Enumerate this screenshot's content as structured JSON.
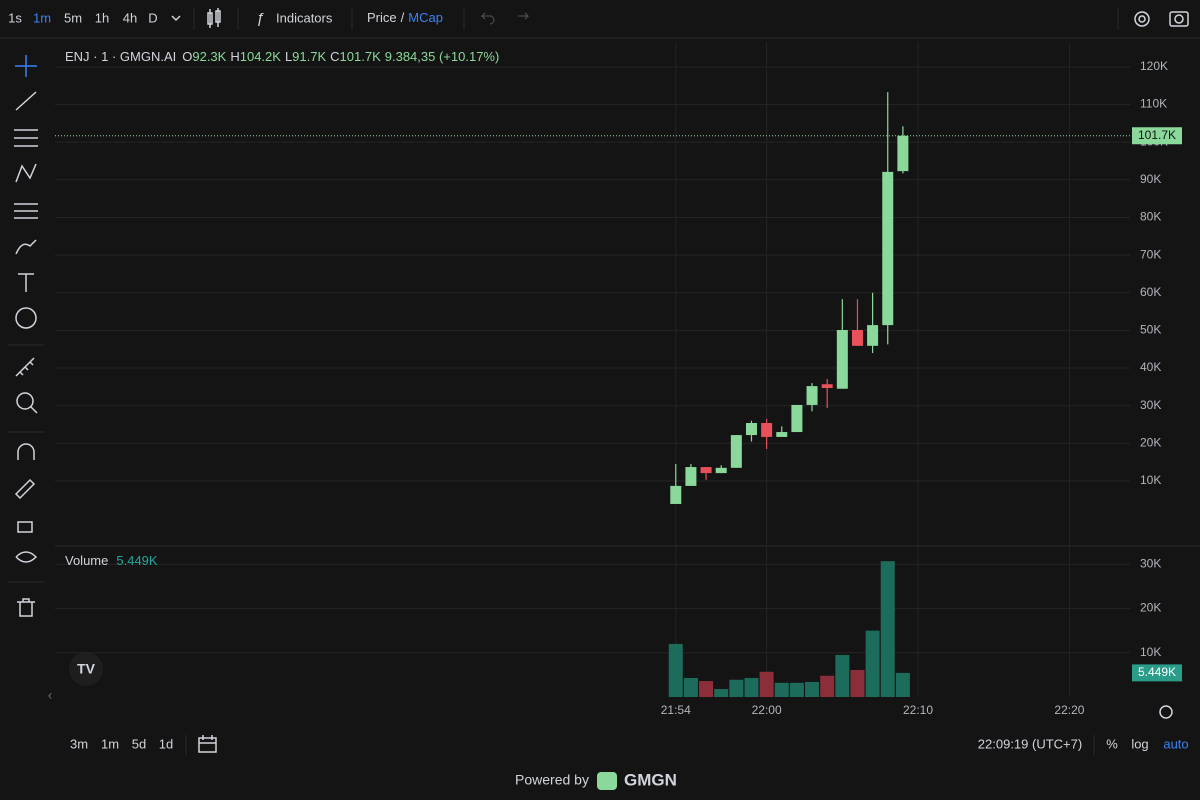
{
  "toolbar": {
    "intervals": [
      "1s",
      "1m",
      "5m",
      "1h",
      "4h",
      "D"
    ],
    "active_interval": "1m",
    "indicators": "Indicators",
    "price": "Price",
    "separator": "/",
    "mcap": "MCap"
  },
  "legend": {
    "symbol": "ENJ · 1 · GMGN.AI",
    "o_label": "O",
    "h_label": "H",
    "l_label": "L",
    "c_label": "C",
    "change": "9.384,35 (+10.17%)"
  },
  "chart_data": [
    {
      "type": "candlestick",
      "x": [
        "21:54",
        "21:55",
        "21:56",
        "21:57",
        "21:58",
        "21:59",
        "22:00",
        "22:01",
        "22:02",
        "22:03",
        "22:04",
        "22:05",
        "22:06",
        "22:07",
        "22:08",
        "22:09"
      ],
      "open": [
        3900,
        8700,
        13700,
        12100,
        13500,
        22200,
        25400,
        21700,
        23000,
        30200,
        35700,
        34500,
        50100,
        45900,
        51400,
        92300
      ],
      "high": [
        14500,
        14500,
        13700,
        14200,
        22200,
        26000,
        26500,
        24500,
        30200,
        36000,
        37100,
        58300,
        58300,
        60000,
        113300,
        104200
      ],
      "low": [
        3900,
        8700,
        10300,
        12100,
        13500,
        20500,
        18500,
        21700,
        23000,
        28500,
        29400,
        34500,
        45900,
        44000,
        46300,
        91700
      ],
      "close": [
        8700,
        13700,
        12100,
        13500,
        22200,
        25400,
        21700,
        23000,
        30200,
        35200,
        34700,
        50100,
        45900,
        51400,
        92100,
        101700
      ],
      "value_labels": {
        "open": "92.3K",
        "high": "104.2K",
        "low": "91.7K",
        "close": "101.7K"
      },
      "up_color": "#8ad99a",
      "down_color": "#e8505b",
      "xlim": [
        "21:13",
        "22:24"
      ],
      "xticks": [
        "21:54",
        "22:00",
        "22:10",
        "22:20"
      ],
      "ylim": [
        -7000,
        126600
      ],
      "yticks": [
        {
          "value": 10000,
          "label": "10K"
        },
        {
          "value": 20000,
          "label": "20K"
        },
        {
          "value": 30000,
          "label": "30K"
        },
        {
          "value": 40000,
          "label": "40K"
        },
        {
          "value": 50000,
          "label": "50K"
        },
        {
          "value": 60000,
          "label": "60K"
        },
        {
          "value": 70000,
          "label": "70K"
        },
        {
          "value": 80000,
          "label": "80K"
        },
        {
          "value": 90000,
          "label": "90K"
        },
        {
          "value": 100000,
          "label": "100K"
        },
        {
          "value": 110000,
          "label": "110K"
        },
        {
          "value": 120000,
          "label": "120K"
        }
      ],
      "last_price": {
        "value": 101700,
        "label": "101.7K"
      },
      "grid": true
    },
    {
      "type": "bar",
      "title": "Volume",
      "x": [
        "21:54",
        "21:55",
        "21:56",
        "21:57",
        "21:58",
        "21:59",
        "22:00",
        "22:01",
        "22:02",
        "22:03",
        "22:04",
        "22:05",
        "22:06",
        "22:07",
        "22:08",
        "22:09"
      ],
      "values": [
        12000,
        4300,
        3600,
        1800,
        3900,
        4300,
        5700,
        3200,
        3200,
        3400,
        4800,
        9500,
        6100,
        15000,
        30700,
        5449
      ],
      "colors": [
        "#1d6b5a",
        "#1d6b5a",
        "#8b2e3a",
        "#1d6b5a",
        "#1d6b5a",
        "#1d6b5a",
        "#8b2e3a",
        "#1d6b5a",
        "#1d6b5a",
        "#1d6b5a",
        "#8b2e3a",
        "#1d6b5a",
        "#8b2e3a",
        "#1d6b5a",
        "#1d6b5a",
        "#1d6b5a"
      ],
      "ylim": [
        0,
        33900
      ],
      "yticks": [
        {
          "value": 10000,
          "label": "10K"
        },
        {
          "value": 20000,
          "label": "20K"
        },
        {
          "value": 30000,
          "label": "30K"
        }
      ],
      "last_value": {
        "value": 5449,
        "label": "5.449K"
      },
      "grid": true
    }
  ],
  "footer": {
    "ranges": [
      "3m",
      "1m",
      "5d",
      "1d"
    ],
    "clock": "22:09:19 (UTC+7)",
    "percent": "%",
    "log": "log",
    "auto": "auto",
    "powered_by": "Powered by",
    "brand": "GMGN"
  }
}
